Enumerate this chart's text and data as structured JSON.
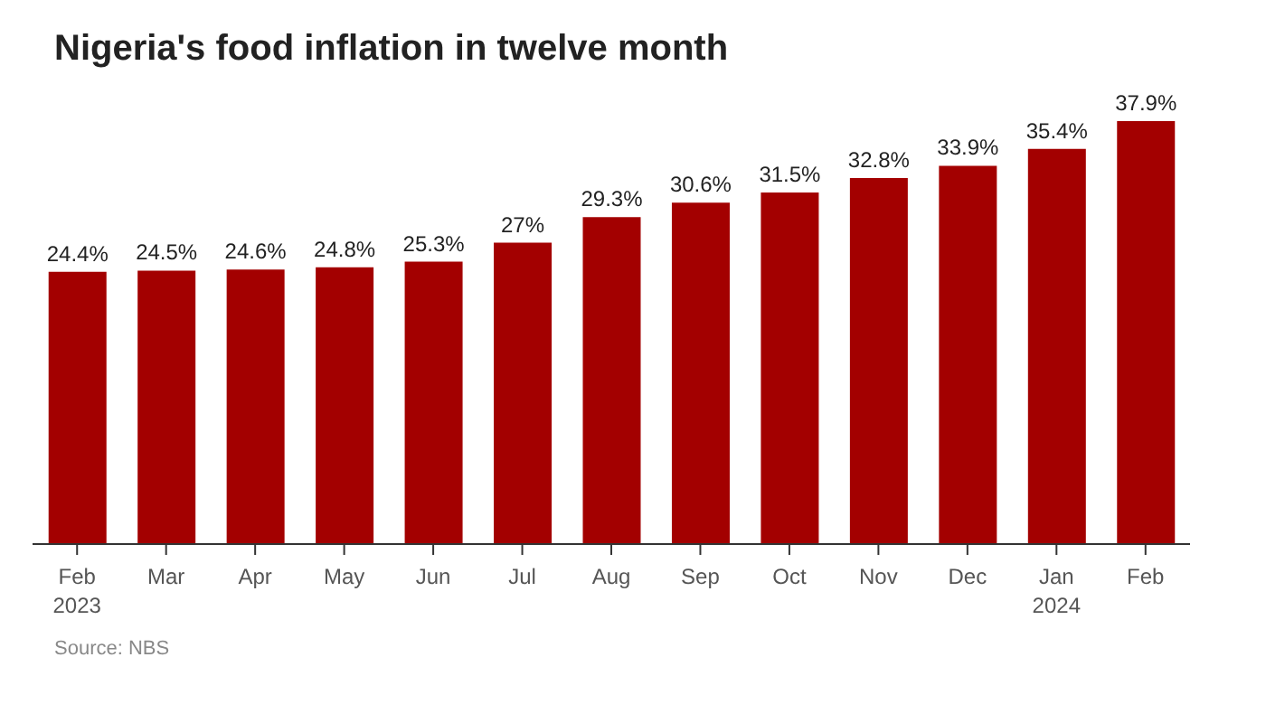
{
  "chart_data": {
    "type": "bar",
    "title": "Nigeria's food inflation in twelve month",
    "categories": [
      "Feb\n2023",
      "Mar",
      "Apr",
      "May",
      "Jun",
      "Jul",
      "Aug",
      "Sep",
      "Oct",
      "Nov",
      "Dec",
      "Jan\n2024",
      "Feb"
    ],
    "values": [
      24.4,
      24.5,
      24.6,
      24.8,
      25.3,
      27,
      29.3,
      30.6,
      31.5,
      32.8,
      33.9,
      35.4,
      37.9
    ],
    "value_labels": [
      "24.4%",
      "24.5%",
      "24.6%",
      "24.8%",
      "25.3%",
      "27%",
      "29.3%",
      "30.6%",
      "31.5%",
      "32.8%",
      "33.9%",
      "35.4%",
      "37.9%"
    ],
    "color": "#a30000",
    "grid": false,
    "annotations": [
      "Source: NBS"
    ]
  }
}
